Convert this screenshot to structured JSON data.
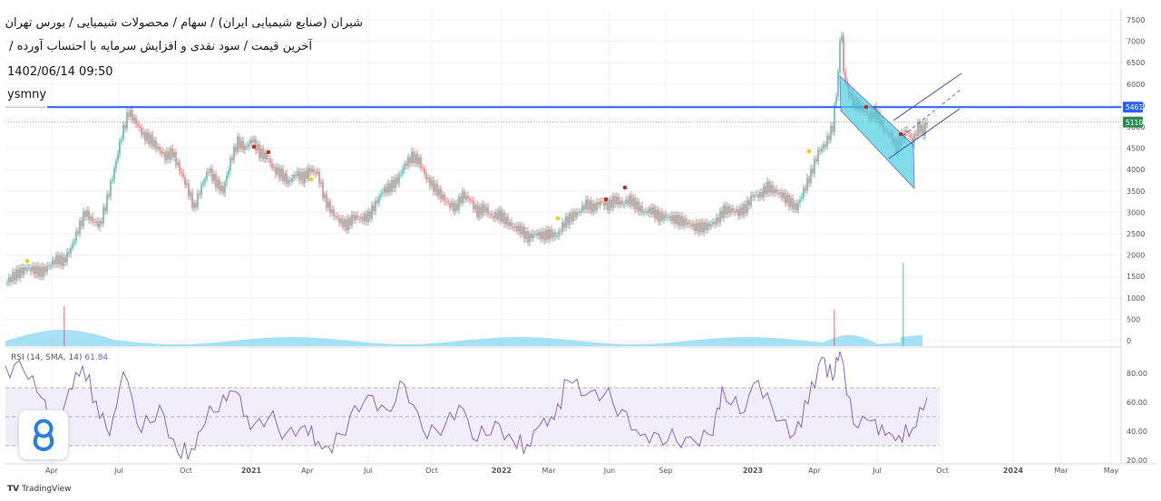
{
  "header": {
    "title_line1": "شیران (صنایع شیمیایی ایران) / سهام / محصولات شیمیایی / بورس تهران",
    "title_line2": "آخرین قیمت / سود نقدی و افزایش سرمایه با احتساب آورده /",
    "timestamp": "1402/06/14 09:50",
    "watermark": "ysmny"
  },
  "rsi": {
    "legend": "RSI (14, SMA, 14)",
    "value": "61.84"
  },
  "brand": {
    "label": "TradingView"
  },
  "colors": {
    "candle_up": "#26a69a",
    "candle_down": "#ef5350",
    "level_line": "#2962ff",
    "volume": "#5cc8f0",
    "rsi_line": "#7e57c2",
    "rsi_band": "#ede7f6",
    "channel_fill": "#4dd0e1",
    "channel_line": "#3f51b5",
    "dot_red": "#c62828",
    "dot_yellow": "#f9c80e",
    "price_tag_blue": "#2962ff",
    "price_tag_green": "#2e8b57"
  },
  "chart_data": {
    "type": "line",
    "title": "شیران (صنایع شیمیایی ایران) / سهام / محصولات شیمیایی / بورس تهران",
    "ylim": [
      0,
      7750
    ],
    "y_ticks": [
      0,
      500,
      1000,
      1500,
      2000,
      2500,
      3000,
      3500,
      4000,
      4500,
      5000,
      5500,
      6000,
      6500,
      7000,
      7500
    ],
    "x_ticks": [
      "Apr",
      "Jul",
      "Oct",
      "2021",
      "Apr",
      "Jul",
      "Oct",
      "2022",
      "Mar",
      "Jun",
      "Sep",
      "2023",
      "Apr",
      "Jul",
      "Oct",
      "2024",
      "Mar",
      "May"
    ],
    "bold_x_ticks": [
      "2021",
      "2022",
      "2023",
      "2024"
    ],
    "series": [
      {
        "points": [
          [
            0,
            1350
          ],
          [
            8,
            1500
          ],
          [
            16,
            1600
          ],
          [
            24,
            1700
          ],
          [
            32,
            1650
          ],
          [
            40,
            1600
          ],
          [
            48,
            1750
          ],
          [
            56,
            1900
          ],
          [
            64,
            1850
          ],
          [
            72,
            2150
          ],
          [
            80,
            2600
          ],
          [
            88,
            3000
          ],
          [
            96,
            2800
          ],
          [
            104,
            2700
          ],
          [
            112,
            3300
          ],
          [
            120,
            4000
          ],
          [
            128,
            4800
          ],
          [
            136,
            5350
          ],
          [
            144,
            5100
          ],
          [
            152,
            4800
          ],
          [
            160,
            4700
          ],
          [
            168,
            4500
          ],
          [
            176,
            4300
          ],
          [
            184,
            4400
          ],
          [
            192,
            4000
          ],
          [
            200,
            3600
          ],
          [
            208,
            3100
          ],
          [
            216,
            3600
          ],
          [
            224,
            4000
          ],
          [
            232,
            3700
          ],
          [
            240,
            3500
          ],
          [
            248,
            4200
          ],
          [
            256,
            4650
          ],
          [
            264,
            4500
          ],
          [
            272,
            4700
          ],
          [
            280,
            4400
          ],
          [
            288,
            4300
          ],
          [
            296,
            4000
          ],
          [
            304,
            3900
          ],
          [
            312,
            3700
          ],
          [
            320,
            3900
          ],
          [
            328,
            3800
          ],
          [
            336,
            4000
          ],
          [
            344,
            3900
          ],
          [
            352,
            3300
          ],
          [
            360,
            3000
          ],
          [
            368,
            2800
          ],
          [
            376,
            2700
          ],
          [
            384,
            2900
          ],
          [
            392,
            2850
          ],
          [
            400,
            2900
          ],
          [
            408,
            3200
          ],
          [
            416,
            3500
          ],
          [
            424,
            3600
          ],
          [
            432,
            3750
          ],
          [
            440,
            4100
          ],
          [
            448,
            4300
          ],
          [
            456,
            4200
          ],
          [
            464,
            3800
          ],
          [
            472,
            3600
          ],
          [
            480,
            3400
          ],
          [
            488,
            3200
          ],
          [
            496,
            3100
          ],
          [
            504,
            3400
          ],
          [
            512,
            3300
          ],
          [
            520,
            3000
          ],
          [
            528,
            3100
          ],
          [
            536,
            2900
          ],
          [
            544,
            2950
          ],
          [
            552,
            2800
          ],
          [
            560,
            2650
          ],
          [
            568,
            2600
          ],
          [
            576,
            2400
          ],
          [
            584,
            2500
          ],
          [
            592,
            2450
          ],
          [
            600,
            2500
          ],
          [
            608,
            2450
          ],
          [
            616,
            2750
          ],
          [
            624,
            2900
          ],
          [
            632,
            3000
          ],
          [
            640,
            3200
          ],
          [
            648,
            3100
          ],
          [
            656,
            3250
          ],
          [
            664,
            3150
          ],
          [
            672,
            3300
          ],
          [
            680,
            3200
          ],
          [
            688,
            3300
          ],
          [
            696,
            3150
          ],
          [
            704,
            3000
          ],
          [
            712,
            3050
          ],
          [
            720,
            2900
          ],
          [
            728,
            2900
          ],
          [
            736,
            2850
          ],
          [
            744,
            2800
          ],
          [
            752,
            2750
          ],
          [
            760,
            2650
          ],
          [
            768,
            2650
          ],
          [
            776,
            2700
          ],
          [
            784,
            2800
          ],
          [
            792,
            3050
          ],
          [
            800,
            3050
          ],
          [
            808,
            3000
          ],
          [
            816,
            3100
          ],
          [
            824,
            3400
          ],
          [
            832,
            3400
          ],
          [
            840,
            3600
          ],
          [
            848,
            3500
          ],
          [
            856,
            3400
          ],
          [
            864,
            3250
          ],
          [
            872,
            3100
          ],
          [
            880,
            3500
          ],
          [
            888,
            3900
          ],
          [
            896,
            4400
          ],
          [
            904,
            4600
          ],
          [
            912,
            5000
          ],
          [
            918,
            6200
          ],
          [
            921,
            7500
          ],
          [
            924,
            6300
          ],
          [
            928,
            5900
          ],
          [
            934,
            5600
          ],
          [
            940,
            5500
          ],
          [
            946,
            5400
          ],
          [
            952,
            5250
          ],
          [
            958,
            5350
          ],
          [
            964,
            5150
          ],
          [
            970,
            4900
          ],
          [
            976,
            4800
          ],
          [
            982,
            4500
          ],
          [
            988,
            4750
          ],
          [
            994,
            4900
          ],
          [
            1000,
            4650
          ],
          [
            1006,
            5000
          ],
          [
            1012,
            4900
          ],
          [
            1016,
            5110
          ]
        ]
      }
    ],
    "annotations": [
      {
        "label": "5461",
        "type": "horizontal-level",
        "y": 5461
      },
      {
        "label": "5110",
        "type": "last-price",
        "y": 5110
      }
    ]
  }
}
